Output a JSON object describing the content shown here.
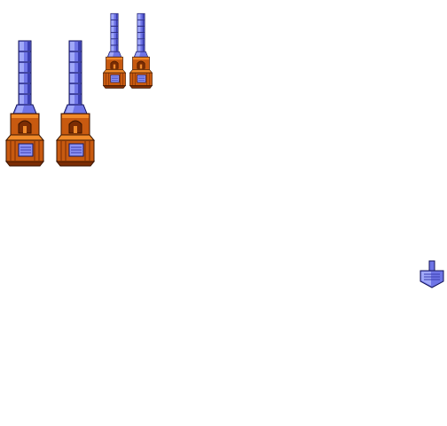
{
  "palette": {
    "column_light": "#a0a8f8",
    "column_mid": "#6e74e6",
    "column_dark": "#3a3eb0",
    "outline": "#14145a",
    "wood_light": "#f08a2a",
    "wood_mid": "#c85a10",
    "wood_dark": "#7a2c04",
    "wood_outline": "#3a1400",
    "plaque": "#8c92f4",
    "plaque_lines": "#3a3eb0"
  },
  "sprites": [
    {
      "id": "large-a",
      "variant": "large",
      "kind": "pedestal-obelisk"
    },
    {
      "id": "large-b",
      "variant": "large",
      "kind": "pedestal-obelisk"
    },
    {
      "id": "small-a",
      "variant": "small",
      "kind": "pedestal-obelisk"
    },
    {
      "id": "small-b",
      "variant": "small",
      "kind": "pedestal-obelisk"
    },
    {
      "id": "icon",
      "variant": "icon",
      "kind": "obelisk-icon"
    }
  ]
}
